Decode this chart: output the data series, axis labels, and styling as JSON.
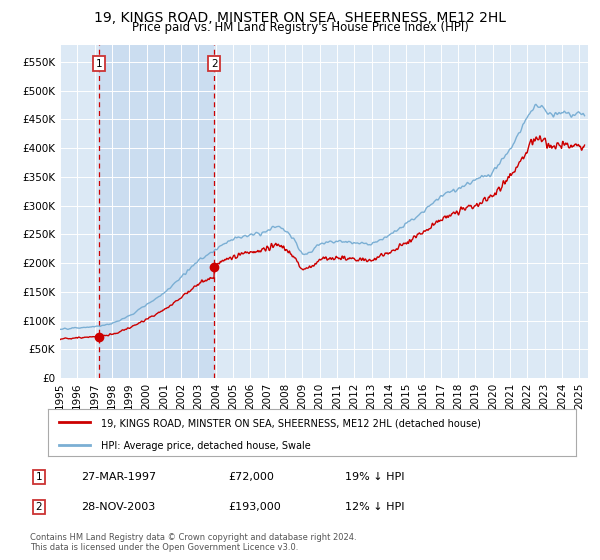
{
  "title": "19, KINGS ROAD, MINSTER ON SEA, SHEERNESS, ME12 2HL",
  "subtitle": "Price paid vs. HM Land Registry's House Price Index (HPI)",
  "ylim": [
    0,
    580000
  ],
  "yticks": [
    0,
    50000,
    100000,
    150000,
    200000,
    250000,
    300000,
    350000,
    400000,
    450000,
    500000,
    550000
  ],
  "ytick_labels": [
    "£0",
    "£50K",
    "£100K",
    "£150K",
    "£200K",
    "£250K",
    "£300K",
    "£350K",
    "£400K",
    "£450K",
    "£500K",
    "£550K"
  ],
  "xlim_start": 1995.0,
  "xlim_end": 2025.5,
  "background_color": "#dce9f5",
  "grid_color": "#ffffff",
  "shade_color": "#c5d8ef",
  "sale1_x": 1997.24,
  "sale1_y": 72000,
  "sale1_label": "1",
  "sale1_date": "27-MAR-1997",
  "sale1_price": "£72,000",
  "sale1_hpi": "19% ↓ HPI",
  "sale2_x": 2003.91,
  "sale2_y": 193000,
  "sale2_label": "2",
  "sale2_date": "28-NOV-2003",
  "sale2_price": "£193,000",
  "sale2_hpi": "12% ↓ HPI",
  "legend_line1": "19, KINGS ROAD, MINSTER ON SEA, SHEERNESS, ME12 2HL (detached house)",
  "legend_line2": "HPI: Average price, detached house, Swale",
  "footer1": "Contains HM Land Registry data © Crown copyright and database right 2024.",
  "footer2": "This data is licensed under the Open Government Licence v3.0.",
  "red_color": "#cc0000",
  "blue_color": "#7bafd4",
  "title_fontsize": 10,
  "subtitle_fontsize": 8.5,
  "tick_fontsize": 7.5
}
